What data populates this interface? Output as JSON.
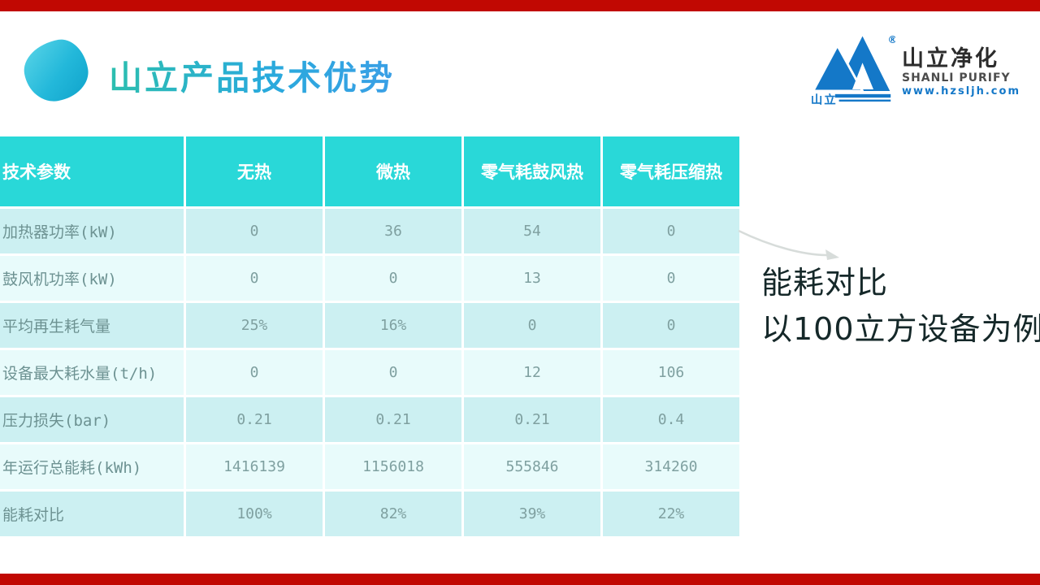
{
  "page": {
    "accent_color": "#c10802",
    "background": "#ffffff"
  },
  "header": {
    "title": "山立产品技术优势",
    "title_color_start": "#2dbfae",
    "title_color_end": "#3a9fe6"
  },
  "logo": {
    "name_cn": "山立净化",
    "name_en": "SHANLI PURIFY",
    "url": "www.hzsljh.com",
    "mark_text": "山立",
    "registered_mark": "®",
    "blue": "#1478c8"
  },
  "table": {
    "header_bg": "#29d8d8",
    "row_colors": [
      "#ccf0f2",
      "#e8fbfb"
    ],
    "columns": [
      "技术参数",
      "无热",
      "微热",
      "零气耗鼓风热",
      "零气耗压缩热"
    ],
    "rows": [
      {
        "label": "加热器功率(kW)",
        "values": [
          "0",
          "36",
          "54",
          "0"
        ]
      },
      {
        "label": "鼓风机功率(kW)",
        "values": [
          "0",
          "0",
          "13",
          "0"
        ]
      },
      {
        "label": "平均再生耗气量",
        "values": [
          "25%",
          "16%",
          "0",
          "0"
        ]
      },
      {
        "label": "设备最大耗水量(t/h)",
        "values": [
          "0",
          "0",
          "12",
          "106"
        ]
      },
      {
        "label": "压力损失(bar)",
        "values": [
          "0.21",
          "0.21",
          "0.21",
          "0.4"
        ]
      },
      {
        "label": "年运行总能耗(kWh)",
        "values": [
          "1416139",
          "1156018",
          "555846",
          "314260"
        ]
      },
      {
        "label": "能耗对比",
        "values": [
          "100%",
          "82%",
          "39%",
          "22%"
        ]
      }
    ]
  },
  "annotation": {
    "line1": "能耗对比",
    "line2": "以100立方设备为例"
  }
}
